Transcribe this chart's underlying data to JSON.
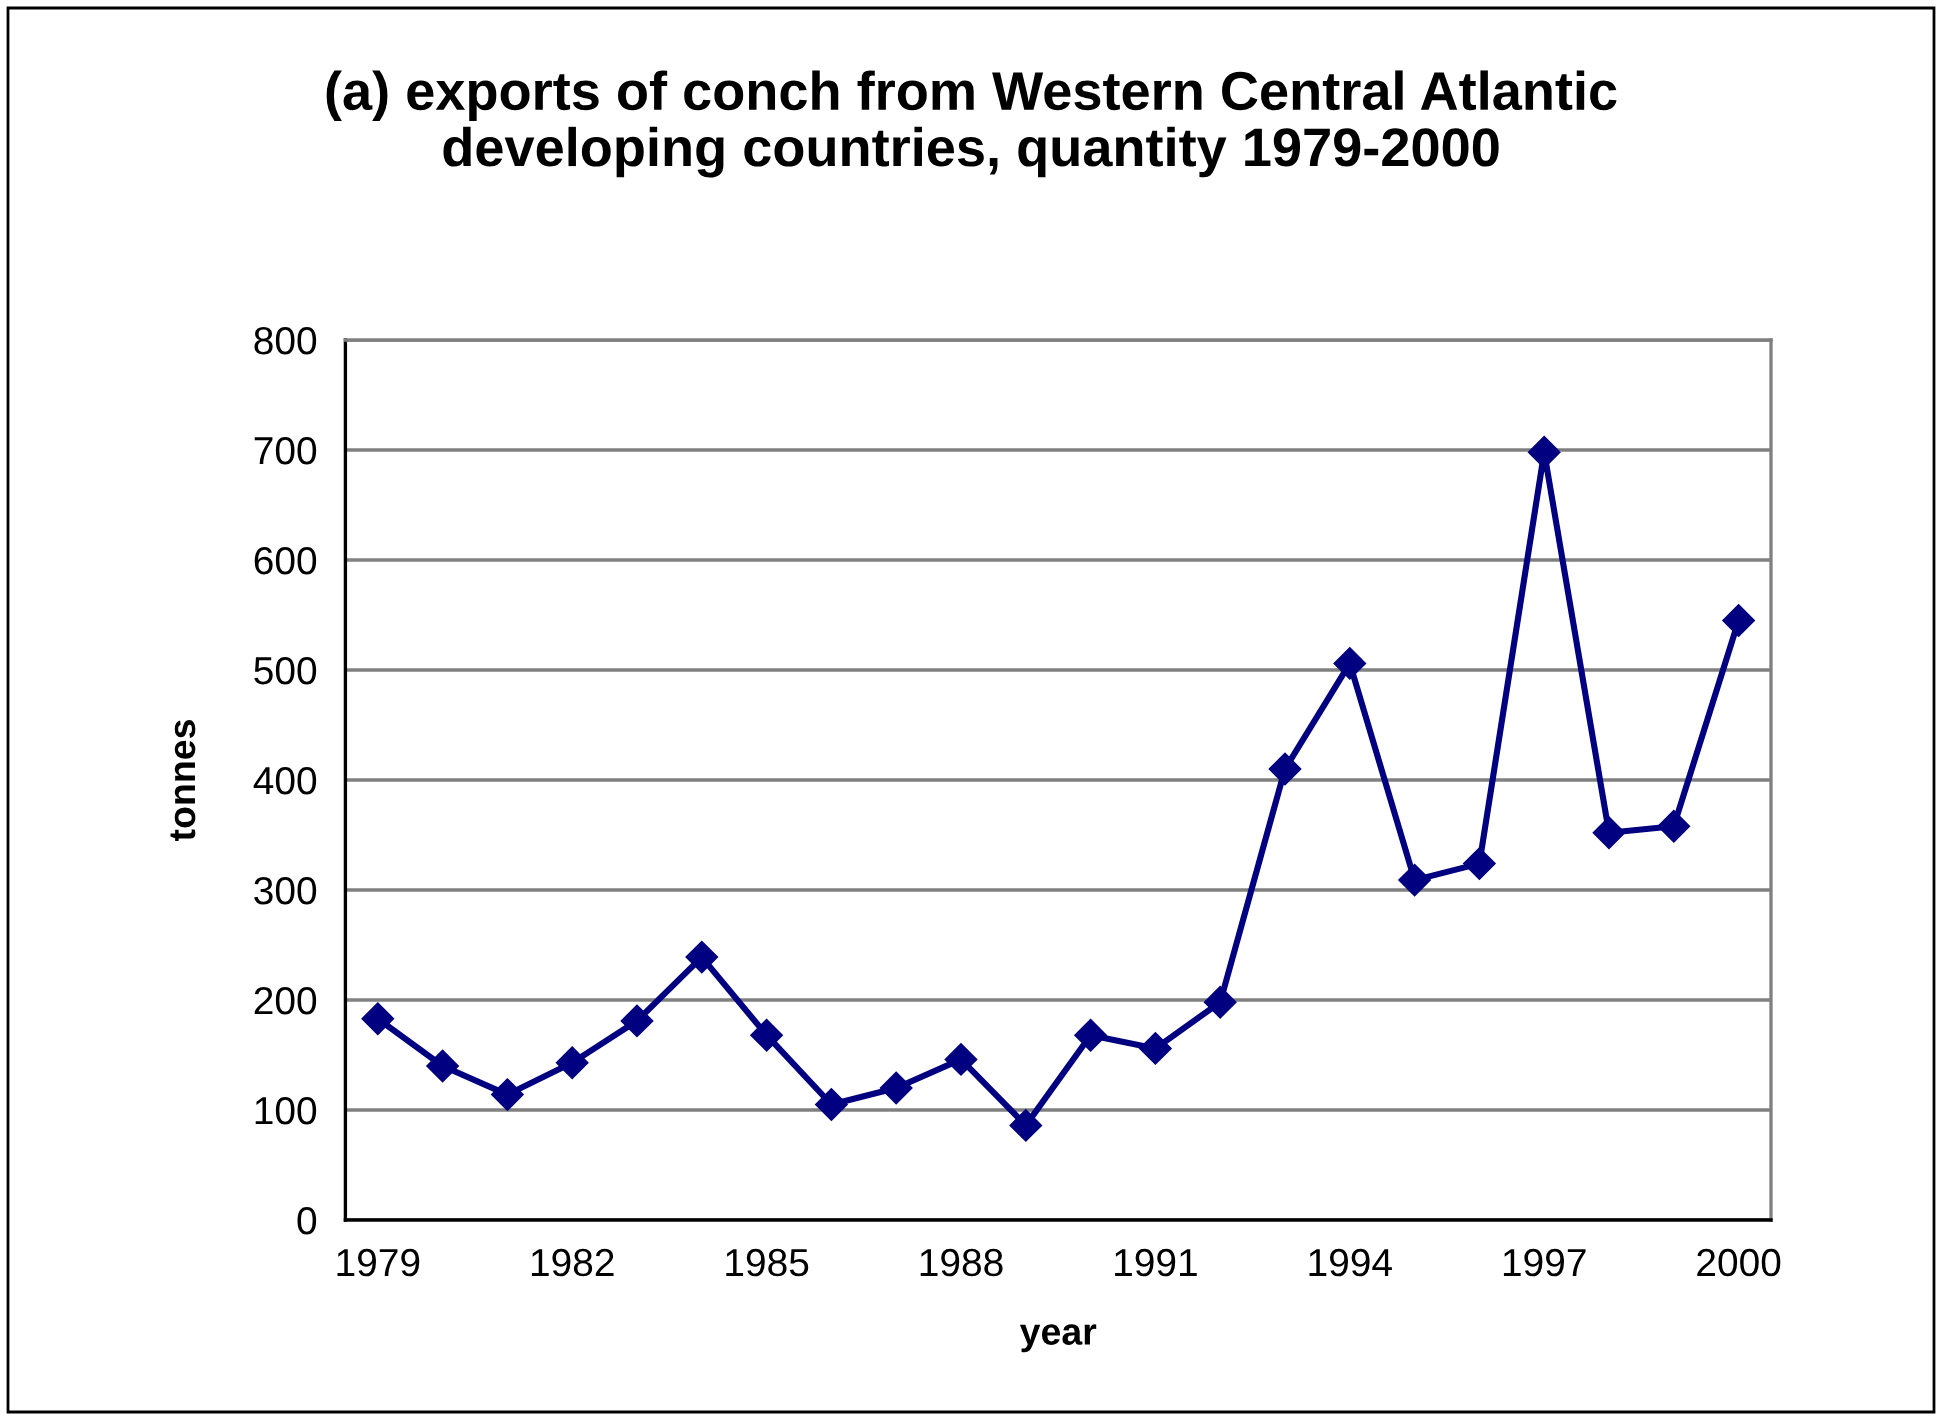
{
  "chart_data": {
    "type": "line",
    "title": "(a) exports of conch from Western Central Atlantic\ndeveloping countries, quantity 1979-2000",
    "xlabel": "year",
    "ylabel": "tonnes",
    "categories": [
      "1979",
      null,
      null,
      "1982",
      null,
      null,
      "1985",
      null,
      null,
      "1988",
      null,
      null,
      "1991",
      null,
      null,
      "1994",
      null,
      null,
      "1997",
      null,
      null,
      "2000"
    ],
    "series": [
      {
        "color": "#000080",
        "values": [
          183,
          140,
          114,
          143,
          181,
          239,
          168,
          105,
          120,
          146,
          86,
          168,
          156,
          198,
          410,
          506,
          309,
          324,
          698,
          352,
          358,
          545
        ]
      }
    ],
    "ylim": [
      0,
      800
    ],
    "yticks": [
      0,
      100,
      200,
      300,
      400,
      500,
      600,
      700,
      800
    ],
    "grid": "y",
    "marker": "diamond",
    "line_style": "solid"
  }
}
